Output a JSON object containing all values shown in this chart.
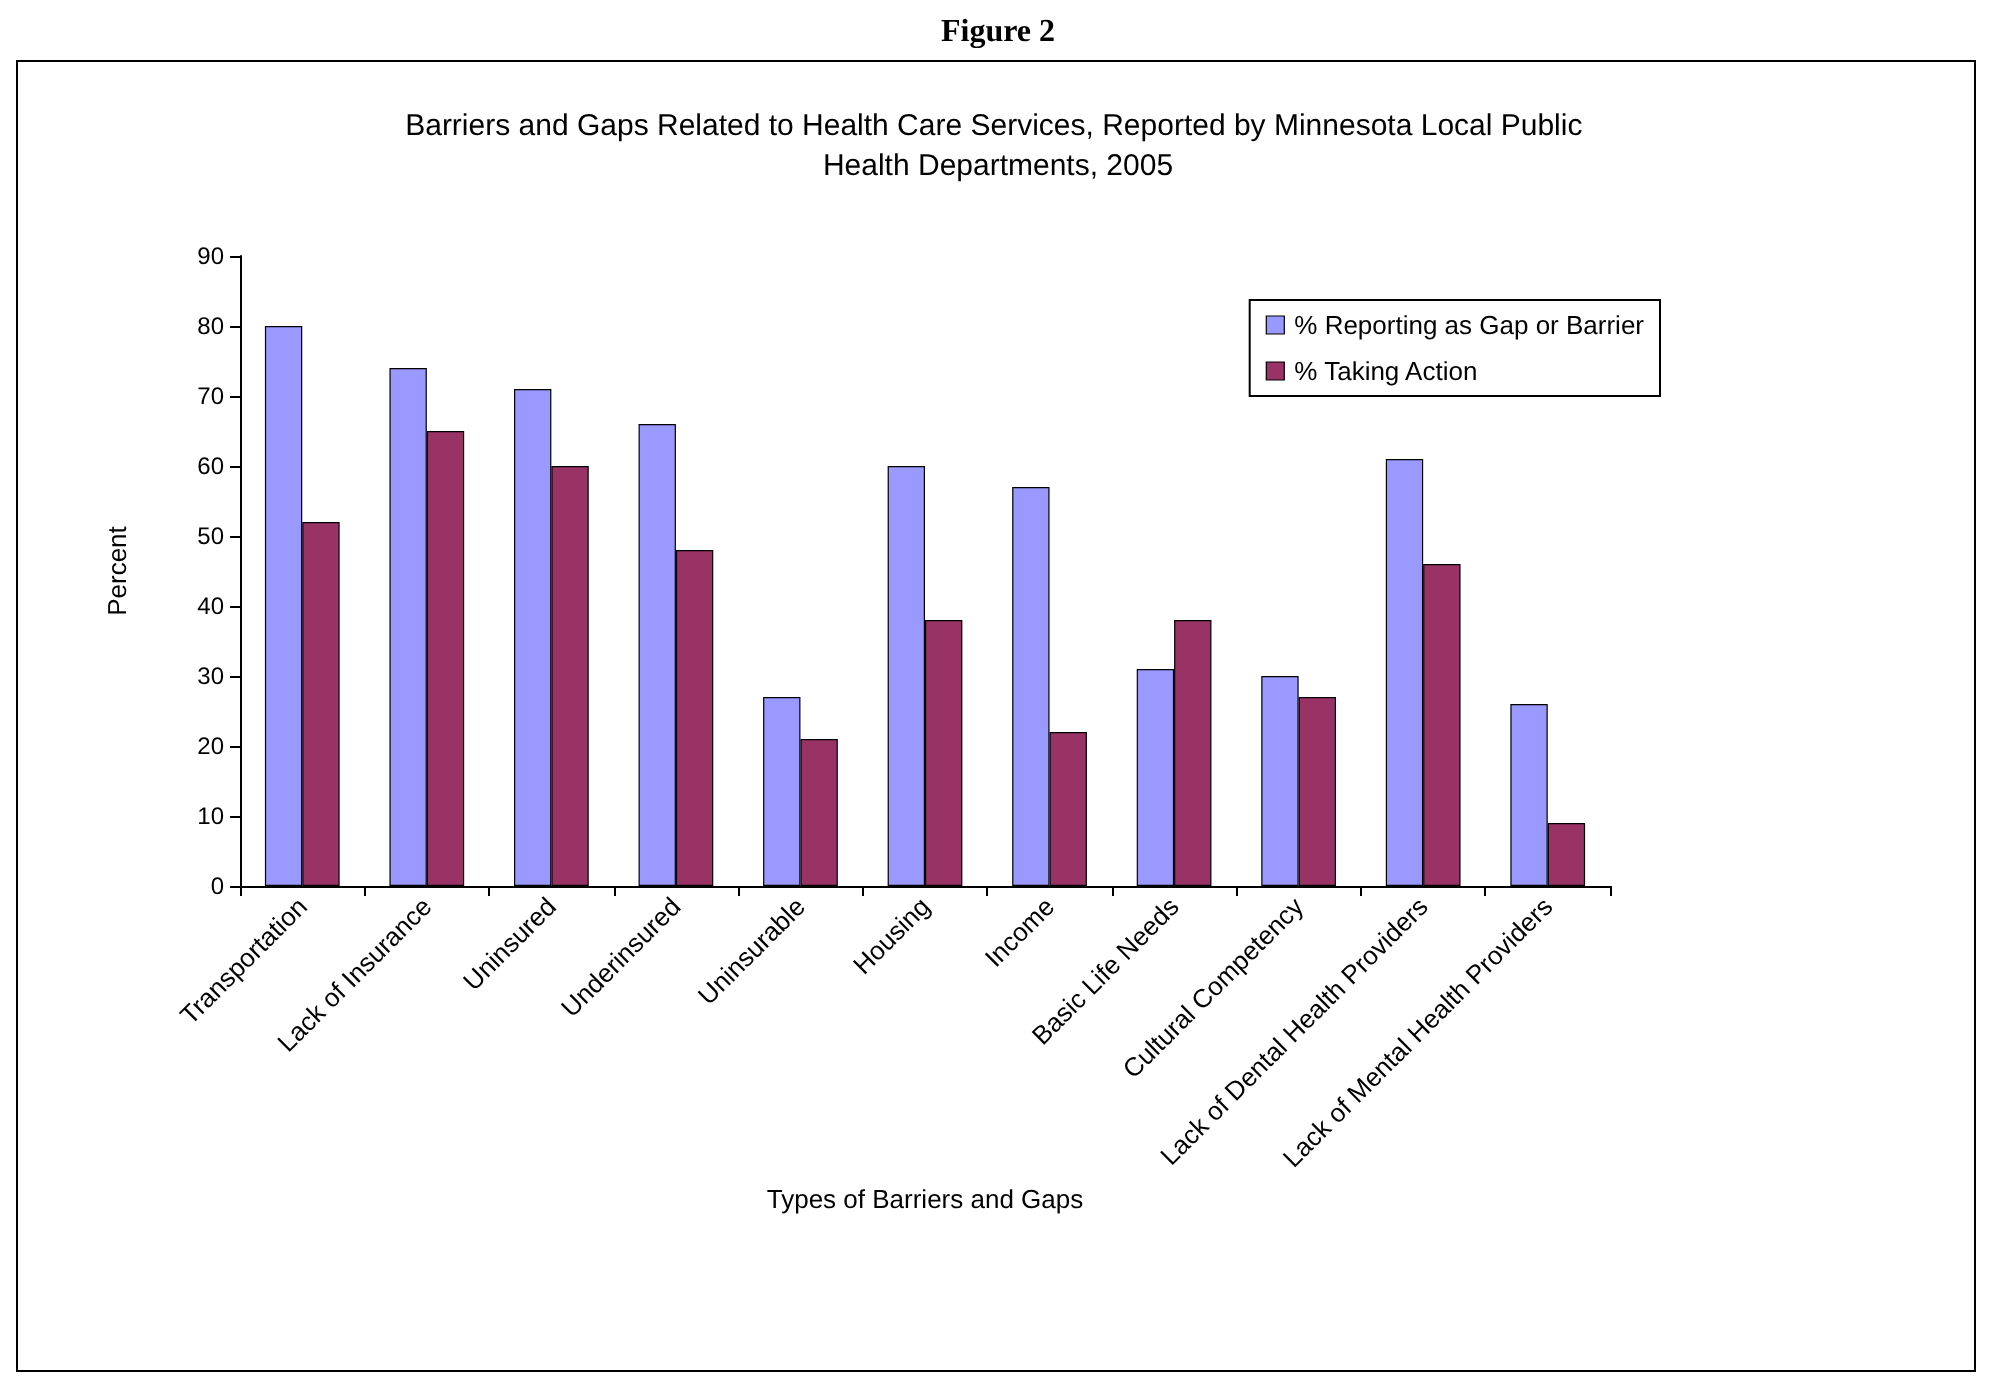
{
  "chart_data": {
    "type": "bar",
    "title": "Barriers and Gaps Related to Health Care Services, Reported by Minnesota Local Public Health Departments, 2005",
    "annotations": [
      "Figure 2"
    ],
    "xlabel": "Types of Barriers and Gaps",
    "ylabel": "Percent",
    "categories": [
      "Transportation",
      "Lack of Insurance",
      "Uninsured",
      "Underinsured",
      "Uninsurable",
      "Housing",
      "Income",
      "Basic Life Needs",
      "Cultural Competency",
      "Lack of Dental Health Providers",
      "Lack of Mental Health Providers"
    ],
    "series": [
      {
        "name": "% Reporting as Gap or Barrier",
        "color": "#9999ff",
        "values": [
          80,
          74,
          71,
          66,
          27,
          60,
          57,
          31,
          30,
          61,
          26
        ]
      },
      {
        "name": "% Taking Action",
        "color": "#993366",
        "values": [
          52,
          65,
          60,
          48,
          21,
          38,
          22,
          38,
          27,
          46,
          9
        ]
      }
    ],
    "ylim": [
      0,
      90
    ],
    "yticks": [
      0,
      10,
      20,
      30,
      40,
      50,
      60,
      70,
      80,
      90
    ],
    "grid": false,
    "legend": "top right"
  }
}
